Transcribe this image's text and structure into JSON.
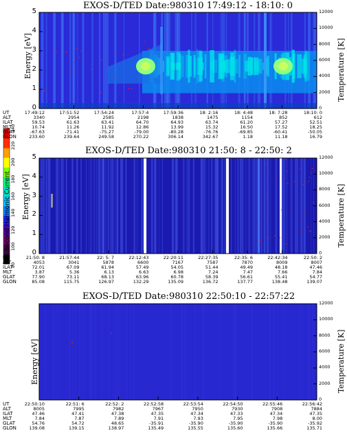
{
  "colors": {
    "background": "#2a2ad8",
    "dark_band": "#1a1aa8",
    "streak": "#3a6cf0",
    "cyan": "#00e8e8",
    "bright": "#90ff80",
    "colorbar": [
      "#000000",
      "#400040",
      "#6a006a",
      "#5000a0",
      "#2020ff",
      "#0080ff",
      "#00c0ff",
      "#00e0c0",
      "#00ff80",
      "#80ff00",
      "#ffff00",
      "#ffa000",
      "#ff3000",
      "#e00000"
    ]
  },
  "colorbar": {
    "label": "Second Harmonic Current",
    "ticks": [
      "80",
      "100",
      "120",
      "140",
      "160",
      "180",
      "200",
      "220",
      "240"
    ]
  },
  "chart_data": [
    {
      "type": "heatmap",
      "title": "EXOS-D/TED   Date:980310  17:49:12 - 18:10: 0",
      "ylabel": "Energy [eV]",
      "y2label": "Temperature [K]",
      "ylim": [
        0,
        5
      ],
      "y2lim": [
        0,
        12000
      ],
      "yticks": [
        "0",
        "1",
        "2",
        "3",
        "4",
        "5"
      ],
      "y2ticks": [
        "0",
        "2000",
        "4000",
        "6000",
        "8000",
        "10000",
        "12000"
      ],
      "rows": [
        "UT",
        "ALT",
        "ILAT",
        "MLT",
        "GLAT",
        "GLON"
      ],
      "columns": [
        [
          "17:49:12",
          "3340",
          "59.53",
          "10.74",
          "-67.63",
          "233.60"
        ],
        [
          "17:51:52",
          "2954",
          "61.63",
          "11.26",
          "-71.41",
          "239.64"
        ],
        [
          "17:54:24",
          "2585",
          "63.41",
          "11.92",
          "-75.27",
          "249.58"
        ],
        [
          "17:57:4",
          "2198",
          "64.70",
          "12.86",
          "-79.00",
          "270.22"
        ],
        [
          "17:59:36",
          "1838",
          "64.93",
          "13.99",
          "-80.28",
          "306.14"
        ],
        [
          "18: 2:16",
          "1475",
          "63.74",
          "15.32",
          "-76.76",
          "342.67"
        ],
        [
          "18: 4:48",
          "1154",
          "61.20",
          "16.50",
          "-69.85",
          "1.18"
        ],
        [
          "18: 7:28",
          "852",
          "57.27",
          "17.52",
          "-60.41",
          "11.18"
        ],
        [
          "18:10: 0",
          "612",
          "52.51",
          "18.25",
          "-50.05",
          "16.79"
        ]
      ]
    },
    {
      "type": "heatmap",
      "title": "EXOS-D/TED   Date:980310  21:50: 8 - 22:50: 2",
      "ylabel": "Energy [eV]",
      "y2label": "Temperature [K]",
      "ylim": [
        0,
        5
      ],
      "y2lim": [
        0,
        12000
      ],
      "yticks": [
        "0",
        "1",
        "2",
        "3",
        "4",
        "5"
      ],
      "y2ticks": [
        "0",
        "2000",
        "4000",
        "6000",
        "8000",
        "10000",
        "12000"
      ],
      "rows": [
        "UT",
        "ALT",
        "ILAT",
        "MLT",
        "GLAT",
        "GLON"
      ],
      "columns": [
        [
          "21:50: 8",
          "4053",
          "72.01",
          "3.87",
          "77.90",
          "85.08"
        ],
        [
          "21:57:44",
          "3041",
          "67.09",
          "5.36",
          "73.11",
          "115.75"
        ],
        [
          "22: 5: 7",
          "5878",
          "61.94",
          "6.13",
          "68.13",
          "126.97"
        ],
        [
          "22:12:43",
          "6600",
          "57.49",
          "6.63",
          "63.96",
          "132.29"
        ],
        [
          "22:20:11",
          "7167",
          "54.05",
          "6.98",
          "60.78",
          "135.09"
        ],
        [
          "22:27:35",
          "7587",
          "51.44",
          "7.24",
          "58.39",
          "136.72"
        ],
        [
          "22:35: 6",
          "7870",
          "49.49",
          "7.47",
          "56.61",
          "137.77"
        ],
        [
          "22:42:34",
          "8009",
          "48.18",
          "7.66",
          "55.41",
          "138.48"
        ],
        [
          "22:50: 2",
          "8007",
          "47.46",
          "7.84",
          "54.77",
          "139.07"
        ]
      ]
    },
    {
      "type": "heatmap",
      "title": "EXOS-D/TED   Date:980310  22:50:10 - 22:57:22",
      "ylabel": "Energy [eV]",
      "y2label": "Temperature [K]",
      "y2lim": [
        0,
        12000
      ],
      "y2ticks": [
        "0",
        "2000",
        "4000",
        "6000",
        "8000",
        "10000",
        "12000"
      ],
      "rows": [
        "UT",
        "ALT",
        "ILAT",
        "MLT",
        "GLAT",
        "GLON"
      ],
      "columns": [
        [
          "22:50:10",
          "8005",
          "47.46",
          "7.84",
          "54.76",
          "139.08"
        ],
        [
          "22:51: 6",
          "7995",
          "47.41",
          "7.87",
          "54.72",
          "139.15"
        ],
        [
          "22:52: 2",
          "7982",
          "47.38",
          "7.89",
          "48.65",
          "138.97"
        ],
        [
          "22:52:58",
          "7967",
          "47.35",
          "7.91",
          "-35.91",
          "135.49"
        ],
        [
          "22:53:54",
          "7950",
          "47.34",
          "7.93",
          "-35.90",
          "135.55"
        ],
        [
          "22:54:50",
          "7930",
          "47.33",
          "7.95",
          "-35.90",
          "135.60"
        ],
        [
          "22:55:46",
          "7908",
          "47.34",
          "7.98",
          "-35.90",
          "135.66"
        ],
        [
          "22:56:42",
          "7884",
          "47.35",
          "8.00",
          "-35.92",
          "135.71"
        ]
      ]
    }
  ]
}
